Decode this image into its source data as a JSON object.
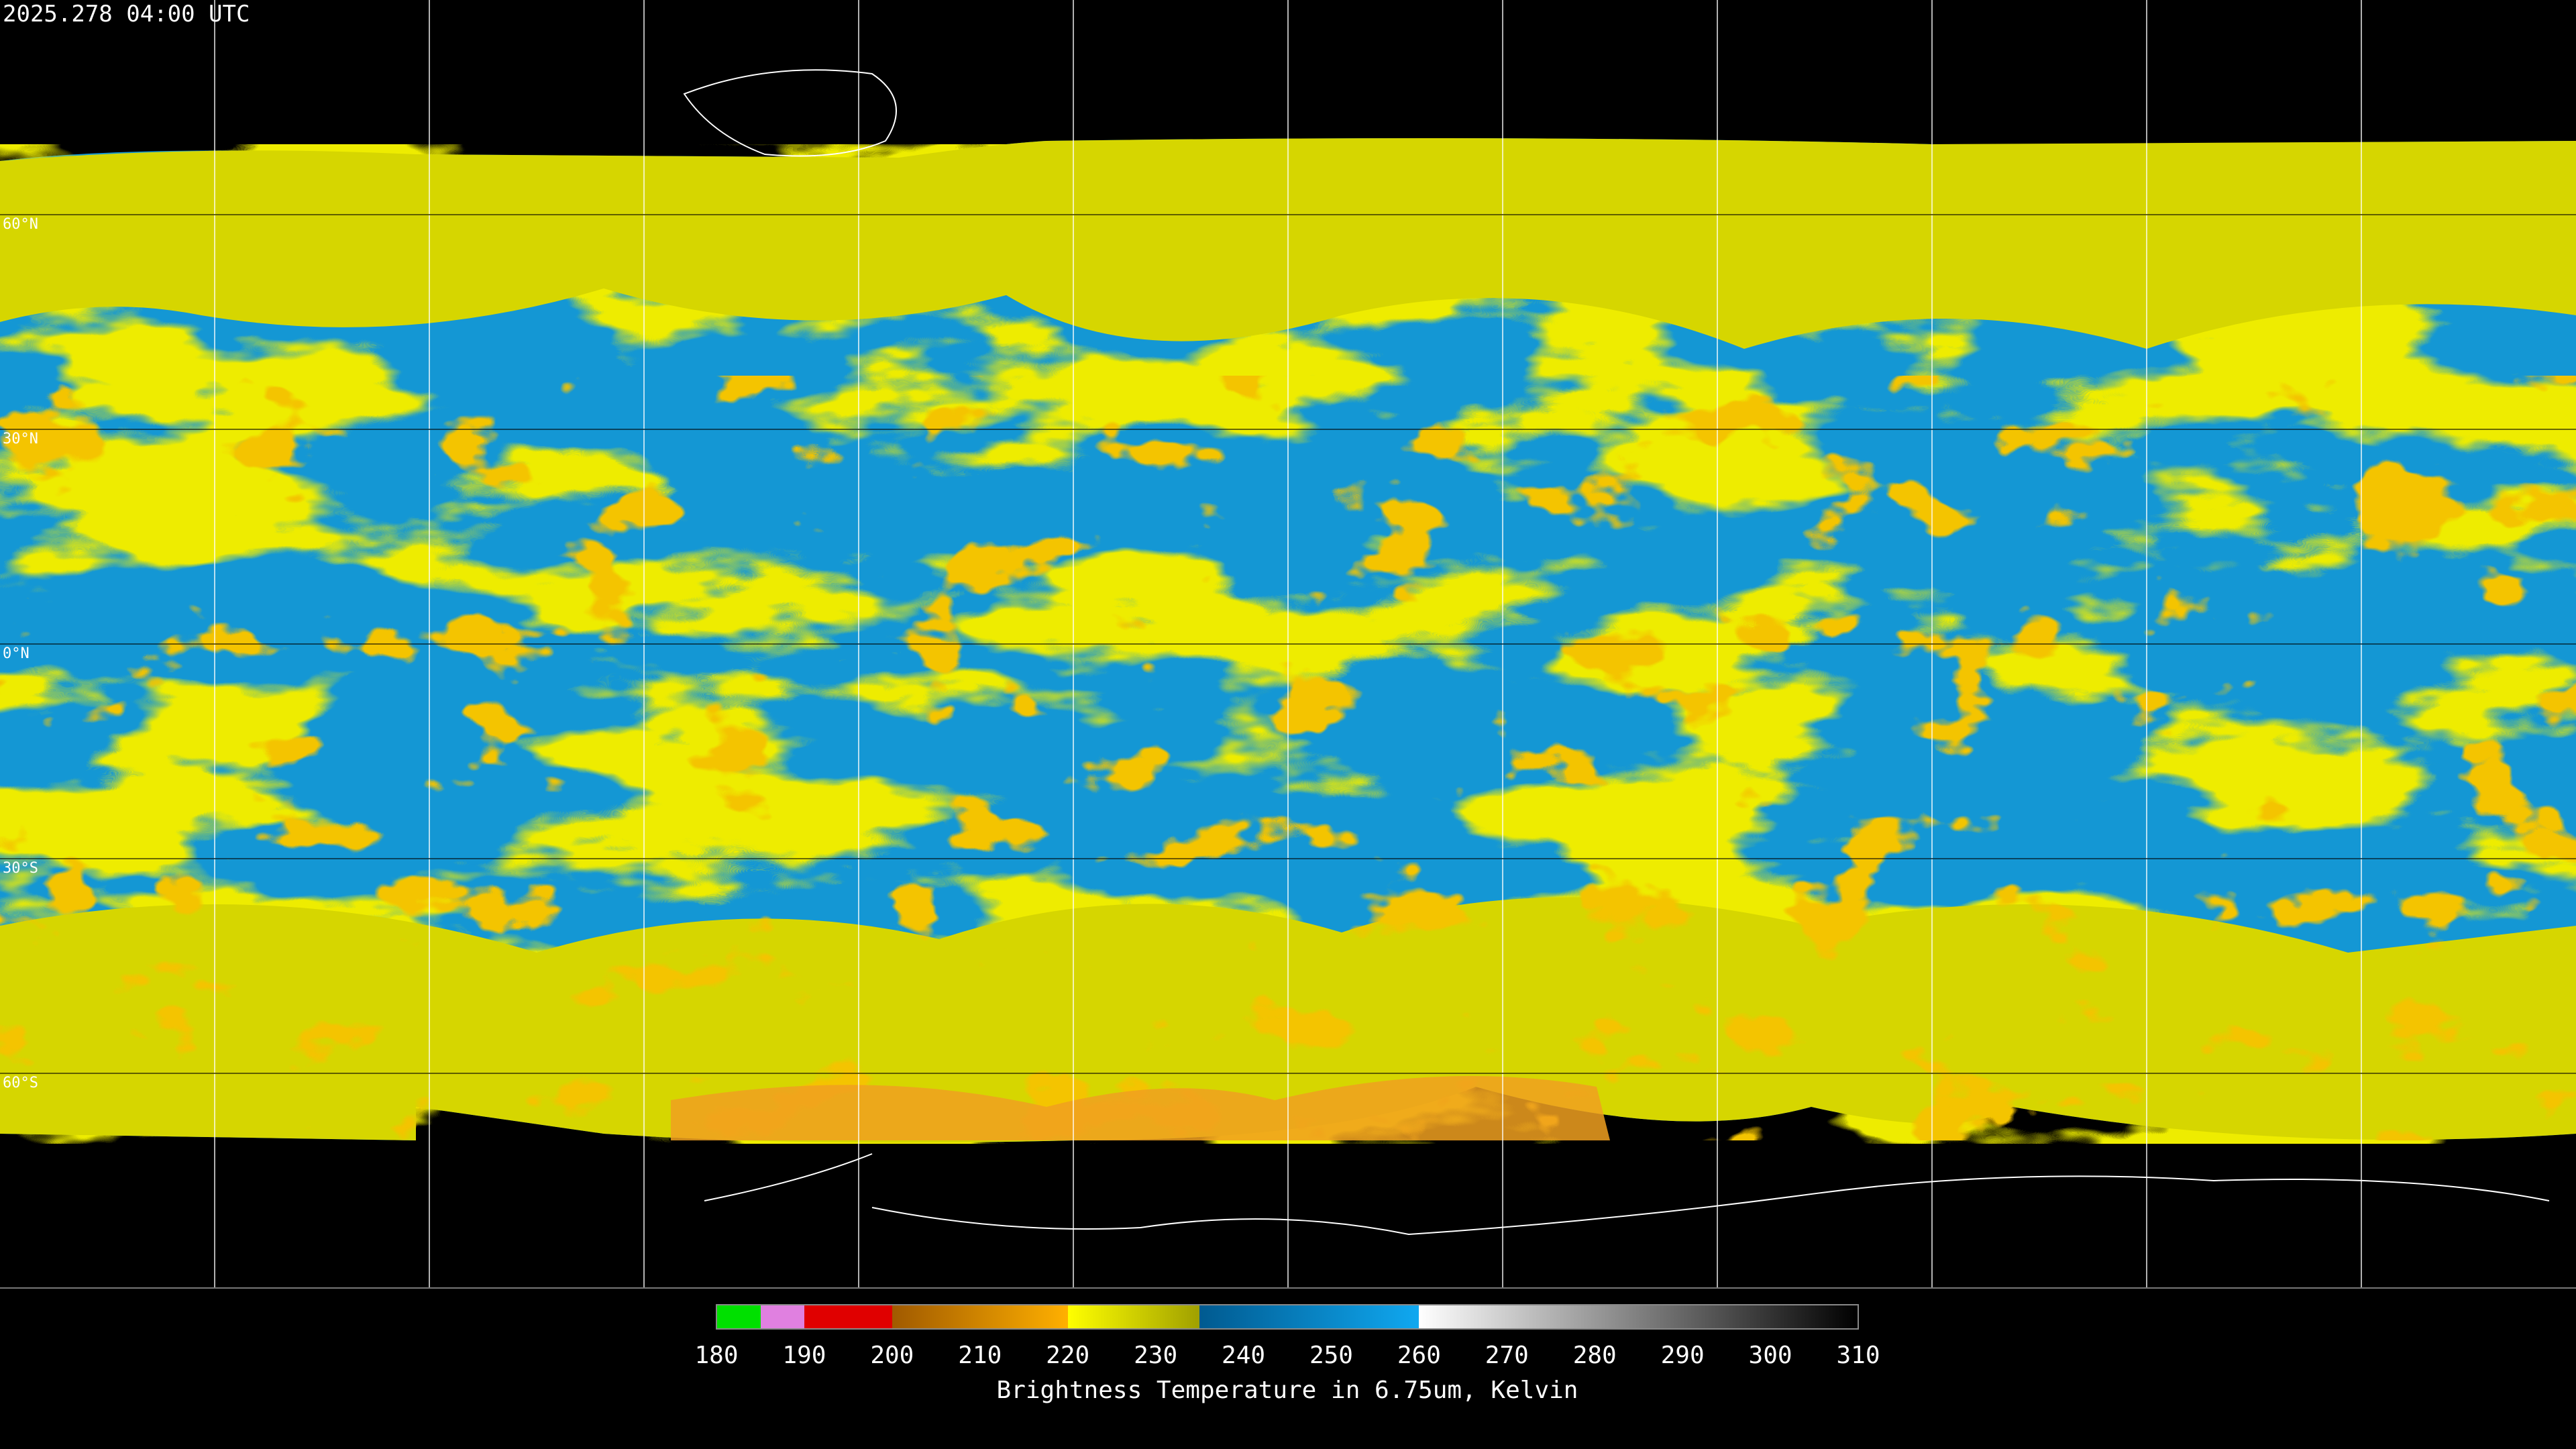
{
  "title": "2025.278 04:00 UTC",
  "lat_labels": [
    "60°N",
    "30°N",
    "0°N",
    "30°S",
    "60°S"
  ],
  "colorbar": {
    "ticks": [
      180,
      190,
      200,
      210,
      220,
      230,
      240,
      250,
      260,
      270,
      280,
      290,
      300,
      310
    ],
    "label": "Brightness Temperature in 6.75um, Kelvin"
  }
}
